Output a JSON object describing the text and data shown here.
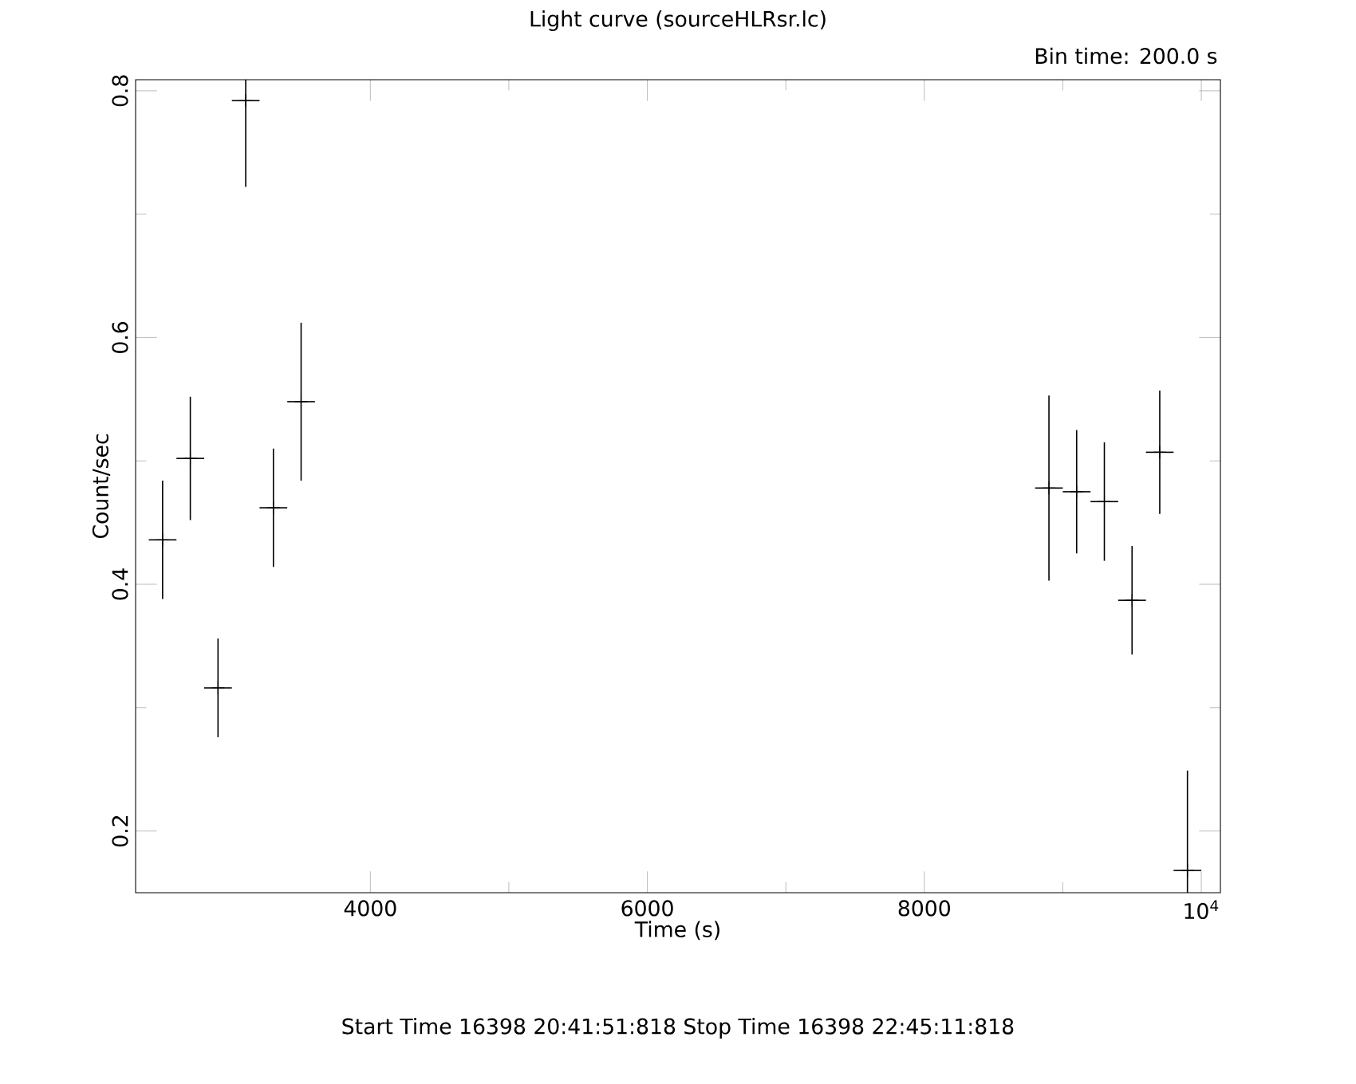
{
  "chart_data": {
    "type": "scatter",
    "title": "Light curve (sourceHLRsr.lc)",
    "xlabel": "Time (s)",
    "ylabel": "Count/sec",
    "annotations": [
      "Bin time: 200.0 s",
      "Start Time 16398 20:41:51:818     Stop Time 16398 22:45:11:818"
    ],
    "x": [
      2500,
      2700,
      2900,
      3100,
      3300,
      3500,
      8900,
      9100,
      9300,
      9500,
      9700,
      9900
    ],
    "values": [
      0.436,
      0.502,
      0.316,
      0.792,
      0.462,
      0.548,
      0.478,
      0.475,
      0.467,
      0.387,
      0.507,
      0.168
    ],
    "errors": [
      0.048,
      0.05,
      0.04,
      0.07,
      0.048,
      0.064,
      0.075,
      0.05,
      0.048,
      0.044,
      0.05,
      [
        0.15,
        0.249
      ]
    ],
    "xerrors": [
      100,
      100,
      100,
      100,
      100,
      100,
      100,
      100,
      100,
      100,
      100,
      100
    ],
    "color": "#000000",
    "marker": "cross",
    "xlim": [
      2305,
      10138
    ],
    "ylim": [
      0.15,
      0.809
    ],
    "xticks": [
      4000,
      6000,
      8000,
      {
        "value": 10000,
        "label": "10$^{4}$"
      }
    ],
    "yticks": [
      0.2,
      0.4,
      0.6,
      0.8
    ]
  }
}
